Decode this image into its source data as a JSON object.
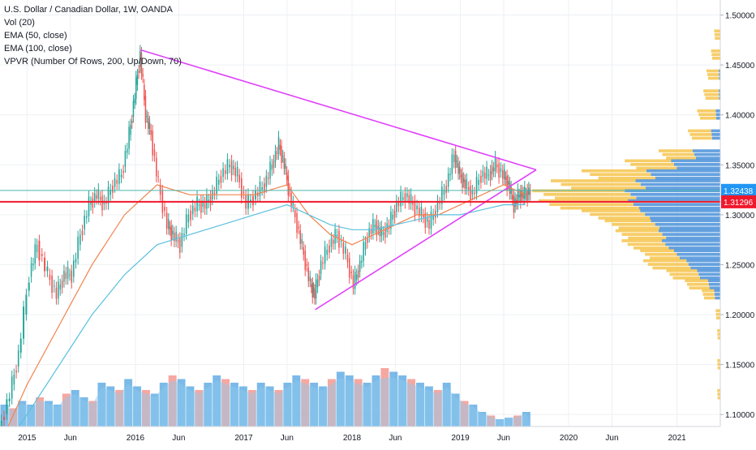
{
  "legend": {
    "title": "U.S. Dollar / Canadian Dollar, 1W, OANDA",
    "indicators": [
      "Vol (20)",
      "EMA (50, close)",
      "EMA (100, close)",
      "VPVR (Number Of Rows, 200, Up/Down, 70)"
    ]
  },
  "price_labels": {
    "last": "1.32438",
    "line": "1.31296"
  },
  "colors": {
    "up": "#26a69a",
    "down": "#ef5350",
    "ema50": "#f0834e",
    "ema100": "#5bc0de",
    "trendline": "#e040fb",
    "hline": "#f0182b",
    "last_line": "#4db6ac",
    "last_label_bg": "#2196f3",
    "vpvr_up": "#4a90d9",
    "vpvr_down": "#f5c042",
    "volume_up": "#4fa3e0",
    "volume_down": "#f28b82",
    "volume_ma": "#8fc9f0"
  },
  "chart_data": {
    "type": "candlestick",
    "title": "U.S. Dollar / Canadian Dollar, 1W, OANDA",
    "y_axis": {
      "ticks": [
        "1.50000",
        "1.45000",
        "1.40000",
        "1.35000",
        "1.30000",
        "1.25000",
        "1.20000",
        "1.15000",
        "1.10000"
      ],
      "tick_values": [
        1.5,
        1.45,
        1.4,
        1.35,
        1.3,
        1.25,
        1.2,
        1.15,
        1.1
      ],
      "range": [
        1.088,
        1.515
      ]
    },
    "x_axis": {
      "ticks": [
        "2015",
        "Jun",
        "2016",
        "Jun",
        "2017",
        "Jun",
        "2018",
        "Jun",
        "2019",
        "Jun",
        "2020",
        "Jun",
        "2021"
      ],
      "tick_values": [
        2015.0,
        2015.4,
        2016.0,
        2016.4,
        2017.0,
        2017.4,
        2018.0,
        2018.4,
        2019.0,
        2019.4,
        2020.0,
        2020.4,
        2021.0
      ],
      "range": [
        2014.75,
        2021.4
      ]
    },
    "price_path": [
      [
        2014.75,
        1.085
      ],
      [
        2014.85,
        1.12
      ],
      [
        2014.93,
        1.16
      ],
      [
        2015.03,
        1.24
      ],
      [
        2015.1,
        1.27
      ],
      [
        2015.2,
        1.24
      ],
      [
        2015.28,
        1.22
      ],
      [
        2015.35,
        1.24
      ],
      [
        2015.42,
        1.24
      ],
      [
        2015.5,
        1.28
      ],
      [
        2015.58,
        1.31
      ],
      [
        2015.65,
        1.32
      ],
      [
        2015.72,
        1.31
      ],
      [
        2015.8,
        1.33
      ],
      [
        2015.88,
        1.34
      ],
      [
        2015.95,
        1.38
      ],
      [
        2016.0,
        1.42
      ],
      [
        2016.05,
        1.46
      ],
      [
        2016.1,
        1.4
      ],
      [
        2016.15,
        1.38
      ],
      [
        2016.22,
        1.33
      ],
      [
        2016.3,
        1.29
      ],
      [
        2016.35,
        1.28
      ],
      [
        2016.42,
        1.27
      ],
      [
        2016.5,
        1.3
      ],
      [
        2016.58,
        1.31
      ],
      [
        2016.65,
        1.31
      ],
      [
        2016.72,
        1.32
      ],
      [
        2016.8,
        1.34
      ],
      [
        2016.88,
        1.35
      ],
      [
        2016.95,
        1.34
      ],
      [
        2017.03,
        1.31
      ],
      [
        2017.12,
        1.32
      ],
      [
        2017.2,
        1.33
      ],
      [
        2017.27,
        1.35
      ],
      [
        2017.33,
        1.37
      ],
      [
        2017.38,
        1.35
      ],
      [
        2017.43,
        1.32
      ],
      [
        2017.5,
        1.29
      ],
      [
        2017.56,
        1.26
      ],
      [
        2017.62,
        1.23
      ],
      [
        2017.66,
        1.22
      ],
      [
        2017.72,
        1.25
      ],
      [
        2017.8,
        1.27
      ],
      [
        2017.87,
        1.28
      ],
      [
        2017.95,
        1.26
      ],
      [
        2018.02,
        1.23
      ],
      [
        2018.08,
        1.25
      ],
      [
        2018.15,
        1.28
      ],
      [
        2018.22,
        1.29
      ],
      [
        2018.28,
        1.28
      ],
      [
        2018.35,
        1.29
      ],
      [
        2018.42,
        1.31
      ],
      [
        2018.5,
        1.32
      ],
      [
        2018.57,
        1.31
      ],
      [
        2018.65,
        1.3
      ],
      [
        2018.72,
        1.29
      ],
      [
        2018.8,
        1.31
      ],
      [
        2018.88,
        1.33
      ],
      [
        2018.95,
        1.36
      ],
      [
        2019.0,
        1.34
      ],
      [
        2019.05,
        1.33
      ],
      [
        2019.12,
        1.32
      ],
      [
        2019.2,
        1.34
      ],
      [
        2019.27,
        1.34
      ],
      [
        2019.33,
        1.35
      ],
      [
        2019.4,
        1.34
      ],
      [
        2019.45,
        1.33
      ],
      [
        2019.5,
        1.31
      ],
      [
        2019.55,
        1.32
      ],
      [
        2019.6,
        1.32
      ],
      [
        2019.65,
        1.324
      ]
    ],
    "ema50_path": [
      [
        2014.75,
        1.07
      ],
      [
        2015.0,
        1.13
      ],
      [
        2015.3,
        1.19
      ],
      [
        2015.6,
        1.25
      ],
      [
        2015.9,
        1.3
      ],
      [
        2016.2,
        1.33
      ],
      [
        2016.5,
        1.32
      ],
      [
        2016.8,
        1.32
      ],
      [
        2017.1,
        1.32
      ],
      [
        2017.4,
        1.33
      ],
      [
        2017.6,
        1.3
      ],
      [
        2017.8,
        1.28
      ],
      [
        2018.0,
        1.27
      ],
      [
        2018.2,
        1.28
      ],
      [
        2018.4,
        1.29
      ],
      [
        2018.6,
        1.3
      ],
      [
        2018.8,
        1.3
      ],
      [
        2019.0,
        1.31
      ],
      [
        2019.2,
        1.32
      ],
      [
        2019.4,
        1.33
      ],
      [
        2019.6,
        1.32
      ]
    ],
    "ema100_path": [
      [
        2014.75,
        1.06
      ],
      [
        2015.0,
        1.1
      ],
      [
        2015.3,
        1.15
      ],
      [
        2015.6,
        1.2
      ],
      [
        2015.9,
        1.24
      ],
      [
        2016.2,
        1.27
      ],
      [
        2016.5,
        1.28
      ],
      [
        2016.8,
        1.29
      ],
      [
        2017.1,
        1.3
      ],
      [
        2017.4,
        1.31
      ],
      [
        2017.6,
        1.3
      ],
      [
        2017.8,
        1.29
      ],
      [
        2018.0,
        1.285
      ],
      [
        2018.2,
        1.285
      ],
      [
        2018.4,
        1.29
      ],
      [
        2018.6,
        1.295
      ],
      [
        2018.8,
        1.3
      ],
      [
        2019.0,
        1.3
      ],
      [
        2019.2,
        1.305
      ],
      [
        2019.4,
        1.31
      ],
      [
        2019.6,
        1.31
      ]
    ],
    "trendline_upper": [
      [
        2016.05,
        1.465
      ],
      [
        2019.7,
        1.345
      ]
    ],
    "trendline_lower": [
      [
        2017.66,
        1.205
      ],
      [
        2019.7,
        1.345
      ]
    ],
    "horizontal_line": 1.31296,
    "last_price": 1.32438,
    "volume": {
      "note": "relative bar heights (0-1)",
      "values": [
        0.3,
        0.25,
        0.35,
        0.3,
        0.4,
        0.35,
        0.3,
        0.45,
        0.5,
        0.4,
        0.35,
        0.6,
        0.55,
        0.5,
        0.65,
        0.55,
        0.5,
        0.45,
        0.6,
        0.7,
        0.65,
        0.55,
        0.5,
        0.6,
        0.7,
        0.65,
        0.6,
        0.55,
        0.5,
        0.6,
        0.55,
        0.5,
        0.6,
        0.7,
        0.65,
        0.6,
        0.55,
        0.65,
        0.75,
        0.7,
        0.65,
        0.6,
        0.7,
        0.8,
        0.75,
        0.7,
        0.65,
        0.6,
        0.55,
        0.5,
        0.6,
        0.45,
        0.35,
        0.3,
        0.2,
        0.15,
        0.1,
        0.12,
        0.15,
        0.2
      ]
    },
    "volume_profile": {
      "note": "up/down share per price row (relative)",
      "rows": [
        {
          "price": 1.48,
          "up": 0.0,
          "down": 0.04
        },
        {
          "price": 1.46,
          "up": 0.0,
          "down": 0.06
        },
        {
          "price": 1.44,
          "up": 0.01,
          "down": 0.08
        },
        {
          "price": 1.42,
          "up": 0.01,
          "down": 0.1
        },
        {
          "price": 1.4,
          "up": 0.03,
          "down": 0.12
        },
        {
          "price": 1.38,
          "up": 0.06,
          "down": 0.15
        },
        {
          "price": 1.36,
          "up": 0.18,
          "down": 0.22
        },
        {
          "price": 1.35,
          "up": 0.32,
          "down": 0.3
        },
        {
          "price": 1.34,
          "up": 0.48,
          "down": 0.42
        },
        {
          "price": 1.33,
          "up": 0.55,
          "down": 0.55
        },
        {
          "price": 1.32,
          "up": 0.62,
          "down": 0.6
        },
        {
          "price": 1.31,
          "up": 0.6,
          "down": 0.58
        },
        {
          "price": 1.3,
          "up": 0.52,
          "down": 0.38
        },
        {
          "price": 1.29,
          "up": 0.45,
          "down": 0.3
        },
        {
          "price": 1.28,
          "up": 0.4,
          "down": 0.28
        },
        {
          "price": 1.27,
          "up": 0.38,
          "down": 0.26
        },
        {
          "price": 1.26,
          "up": 0.3,
          "down": 0.22
        },
        {
          "price": 1.25,
          "up": 0.22,
          "down": 0.28
        },
        {
          "price": 1.24,
          "up": 0.15,
          "down": 0.2
        },
        {
          "price": 1.23,
          "up": 0.08,
          "down": 0.15
        },
        {
          "price": 1.22,
          "up": 0.04,
          "down": 0.08
        },
        {
          "price": 1.2,
          "up": 0.0,
          "down": 0.03
        },
        {
          "price": 1.18,
          "up": 0.0,
          "down": 0.02
        },
        {
          "price": 1.15,
          "up": 0.0,
          "down": 0.02
        },
        {
          "price": 1.12,
          "up": 0.0,
          "down": 0.02
        }
      ]
    }
  }
}
